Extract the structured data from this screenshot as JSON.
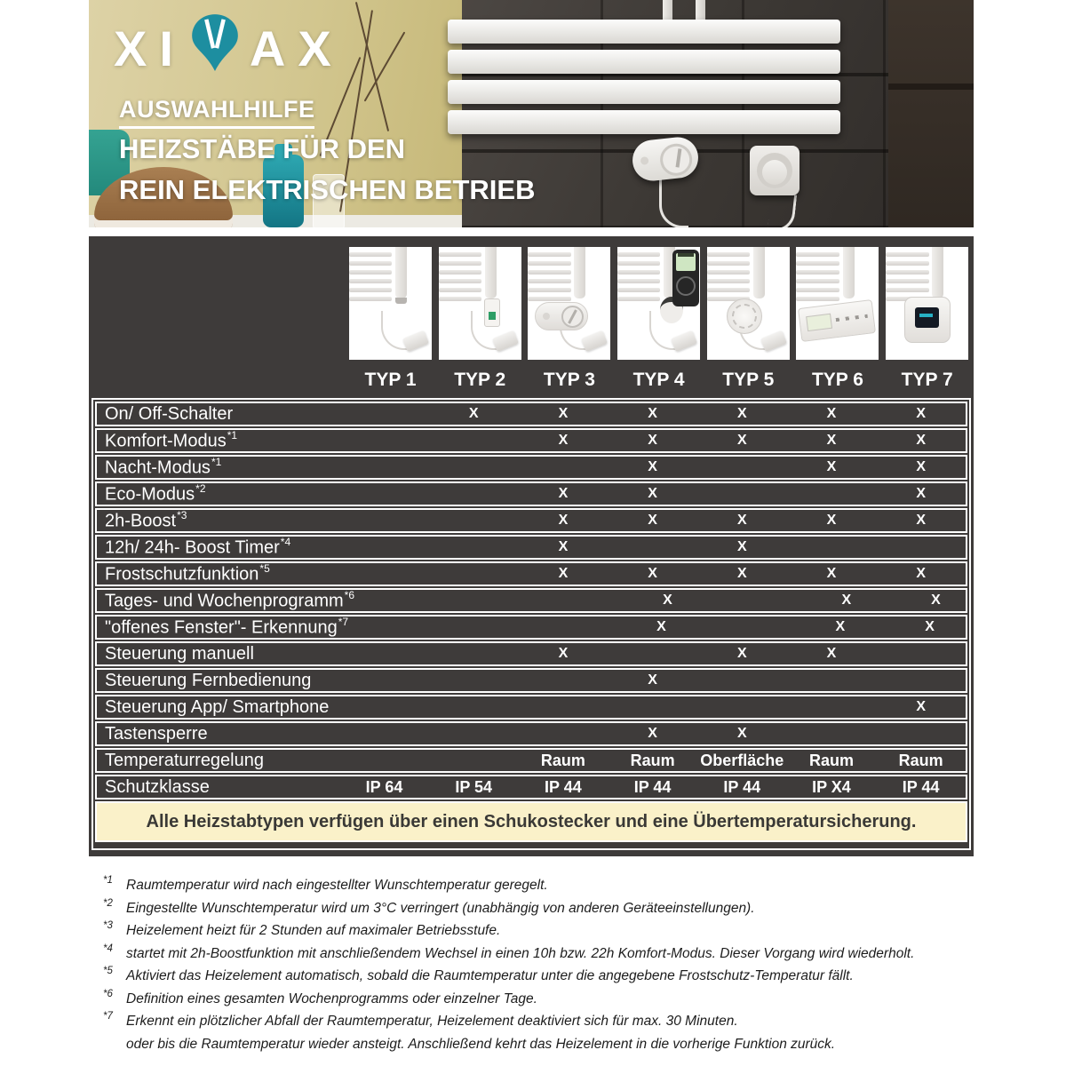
{
  "colors": {
    "accent_teal": "#1d8ea0",
    "panel_dark": "#3e3b3a",
    "banner_cream": "#faf1c9"
  },
  "header": {
    "logo_left": "XI",
    "logo_right": "AX",
    "logo_m_icon": "teal-pin-m-icon",
    "eyebrow": "AUSWAHLHILFE",
    "title_line1": "HEIZSTÄBE FÜR DEN",
    "title_line2": "REIN ELEKTRISCHEN BETRIEB"
  },
  "products": {
    "types": [
      "TYP 1",
      "TYP 2",
      "TYP 3",
      "TYP 4",
      "TYP 5",
      "TYP 6",
      "TYP 7"
    ],
    "control_icons": [
      "plain-cable-icon",
      "inline-switch-icon",
      "dial-control-icon",
      "remote-control-icon",
      "thermostat-head-icon",
      "control-panel-icon",
      "control-box-icon"
    ]
  },
  "table": {
    "rows": [
      {
        "label": "On/ Off-Schalter",
        "sup": "",
        "values": [
          "",
          "X",
          "X",
          "X",
          "X",
          "X",
          "X"
        ]
      },
      {
        "label": "Komfort-Modus",
        "sup": "*1",
        "values": [
          "",
          "",
          "X",
          "X",
          "X",
          "X",
          "X"
        ]
      },
      {
        "label": "Nacht-Modus",
        "sup": "*1",
        "values": [
          "",
          "",
          "",
          "X",
          "",
          "X",
          "X"
        ]
      },
      {
        "label": "Eco-Modus",
        "sup": "*2",
        "values": [
          "",
          "",
          "X",
          "X",
          "",
          "",
          "X"
        ]
      },
      {
        "label": "2h-Boost",
        "sup": "*3",
        "values": [
          "",
          "",
          "X",
          "X",
          "X",
          "X",
          "X"
        ]
      },
      {
        "label": "12h/ 24h- Boost Timer",
        "sup": "*4",
        "values": [
          "",
          "",
          "X",
          "",
          "X",
          "",
          ""
        ]
      },
      {
        "label": "Frostschutzfunktion",
        "sup": "*5",
        "values": [
          "",
          "",
          "X",
          "X",
          "X",
          "X",
          "X"
        ]
      },
      {
        "label": "Tages- und Wochenprogramm",
        "sup": "*6",
        "values": [
          "",
          "",
          "",
          "X",
          "",
          "X",
          "X"
        ]
      },
      {
        "label": "\"offenes Fenster\"- Erkennung",
        "sup": "*7",
        "values": [
          "",
          "",
          "",
          "X",
          "",
          "X",
          "X"
        ]
      },
      {
        "label": "Steuerung manuell",
        "sup": "",
        "values": [
          "",
          "",
          "X",
          "",
          "X",
          "X",
          ""
        ]
      },
      {
        "label": "Steuerung Fernbedienung",
        "sup": "",
        "values": [
          "",
          "",
          "",
          "X",
          "",
          "",
          ""
        ]
      },
      {
        "label": "Steuerung App/ Smartphone",
        "sup": "",
        "values": [
          "",
          "",
          "",
          "",
          "",
          "",
          "X"
        ]
      },
      {
        "label": "Tastensperre",
        "sup": "",
        "values": [
          "",
          "",
          "",
          "X",
          "X",
          "",
          ""
        ]
      },
      {
        "label": "Temperaturregelung",
        "sup": "",
        "values": [
          "",
          "",
          "Raum",
          "Raum",
          "Oberfläche",
          "Raum",
          "Raum"
        ]
      },
      {
        "label": "Schutzklasse",
        "sup": "",
        "values": [
          "IP 64",
          "IP 54",
          "IP 44",
          "IP 44",
          "IP 44",
          "IP X4",
          "IP 44"
        ]
      }
    ],
    "banner": "Alle Heizstabtypen verfügen über einen Schukostecker und eine Übertemperatursicherung."
  },
  "footnotes": [
    {
      "sup": "*1",
      "text": "Raumtemperatur wird nach eingestellter Wunschtemperatur geregelt."
    },
    {
      "sup": "*2",
      "text": "Eingestellte Wunschtemperatur wird um 3°C verringert (unabhängig von anderen Geräteeinstellungen)."
    },
    {
      "sup": "*3",
      "text": "Heizelement heizt für 2 Stunden auf maximaler Betriebsstufe."
    },
    {
      "sup": "*4",
      "text": "startet mit 2h-Boostfunktion mit anschließendem Wechsel in einen 10h bzw. 22h Komfort-Modus. Dieser Vorgang wird wiederholt."
    },
    {
      "sup": "*5",
      "text": "Aktiviert das Heizelement automatisch, sobald die Raumtemperatur unter die angegebene Frostschutz-Temperatur fällt."
    },
    {
      "sup": "*6",
      "text": "Definition eines gesamten Wochenprogramms oder einzelner Tage."
    },
    {
      "sup": "*7",
      "text": "Erkennt ein plötzlicher Abfall der Raumtemperatur, Heizelement deaktiviert sich für max. 30 Minuten.",
      "text2": "oder bis die Raumtemperatur wieder ansteigt. Anschließend kehrt das Heizelement in die vorherige Funktion zurück."
    }
  ]
}
